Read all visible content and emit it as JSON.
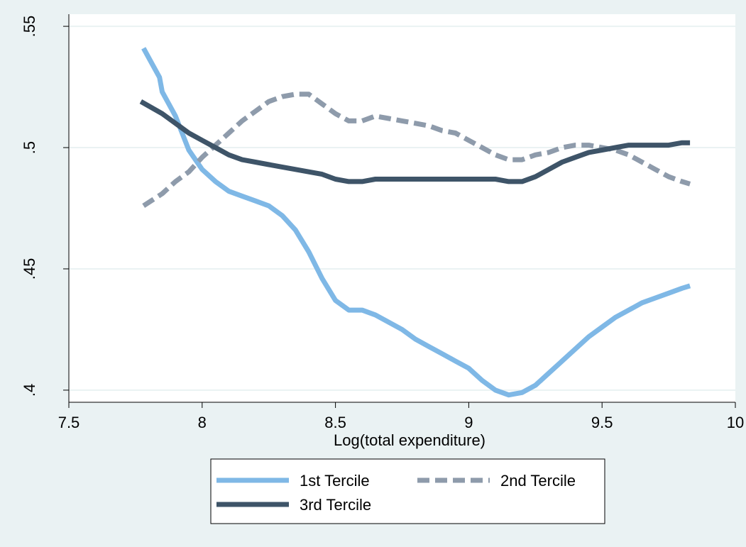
{
  "colors": {
    "background": "#eaf2f3",
    "plot_background": "#ffffff",
    "grid": "#eaf2f3",
    "axis": "#000000",
    "tercile1": "#7fb8e6",
    "tercile2": "#8e9bab",
    "tercile3": "#3e5468"
  },
  "chart_data": {
    "type": "line",
    "title": "",
    "xlabel": "Log(total expenditure)",
    "ylabel": "",
    "xlim": [
      7.5,
      10
    ],
    "ylim": [
      0.395,
      0.555
    ],
    "x_ticks": [
      7.5,
      8,
      8.5,
      9,
      9.5,
      10
    ],
    "x_tick_labels": [
      "7.5",
      "8",
      "8.5",
      "9",
      "9.5",
      "10"
    ],
    "y_ticks": [
      0.4,
      0.45,
      0.5,
      0.55
    ],
    "y_tick_labels": [
      ".4",
      ".45",
      ".5",
      ".55"
    ],
    "grid": true,
    "legend_position": "bottom",
    "series": [
      {
        "name": "1st Tercile",
        "color": "#7fb8e6",
        "style": "solid",
        "x": [
          7.78,
          7.81,
          7.84,
          7.85,
          7.9,
          7.95,
          8.0,
          8.05,
          8.1,
          8.15,
          8.2,
          8.25,
          8.3,
          8.35,
          8.4,
          8.45,
          8.5,
          8.55,
          8.6,
          8.65,
          8.7,
          8.75,
          8.8,
          8.85,
          8.9,
          8.95,
          9.0,
          9.05,
          9.1,
          9.15,
          9.2,
          9.25,
          9.3,
          9.35,
          9.4,
          9.45,
          9.5,
          9.55,
          9.6,
          9.65,
          9.7,
          9.75,
          9.8,
          9.83
        ],
        "y": [
          0.541,
          0.535,
          0.529,
          0.523,
          0.513,
          0.499,
          0.491,
          0.486,
          0.482,
          0.48,
          0.478,
          0.476,
          0.472,
          0.466,
          0.457,
          0.446,
          0.437,
          0.433,
          0.433,
          0.431,
          0.428,
          0.425,
          0.421,
          0.418,
          0.415,
          0.412,
          0.409,
          0.404,
          0.4,
          0.398,
          0.399,
          0.402,
          0.407,
          0.412,
          0.417,
          0.422,
          0.426,
          0.43,
          0.433,
          0.436,
          0.438,
          0.44,
          0.442,
          0.443
        ]
      },
      {
        "name": "2nd Tercile",
        "color": "#8e9bab",
        "style": "dashed",
        "x": [
          7.78,
          7.85,
          7.9,
          7.95,
          8.0,
          8.05,
          8.1,
          8.15,
          8.2,
          8.25,
          8.3,
          8.35,
          8.4,
          8.45,
          8.5,
          8.55,
          8.6,
          8.65,
          8.7,
          8.75,
          8.8,
          8.85,
          8.9,
          8.95,
          9.0,
          9.05,
          9.1,
          9.15,
          9.2,
          9.25,
          9.3,
          9.35,
          9.4,
          9.45,
          9.5,
          9.55,
          9.6,
          9.65,
          9.7,
          9.75,
          9.8,
          9.83
        ],
        "y": [
          0.476,
          0.481,
          0.486,
          0.49,
          0.496,
          0.501,
          0.506,
          0.511,
          0.515,
          0.519,
          0.521,
          0.522,
          0.522,
          0.518,
          0.514,
          0.511,
          0.511,
          0.513,
          0.512,
          0.511,
          0.51,
          0.509,
          0.507,
          0.506,
          0.503,
          0.5,
          0.497,
          0.495,
          0.495,
          0.497,
          0.498,
          0.5,
          0.501,
          0.501,
          0.5,
          0.499,
          0.497,
          0.494,
          0.491,
          0.488,
          0.486,
          0.485
        ]
      },
      {
        "name": "3rd Tercile",
        "color": "#3e5468",
        "style": "solid",
        "x": [
          7.77,
          7.85,
          7.9,
          7.95,
          8.0,
          8.05,
          8.1,
          8.15,
          8.2,
          8.25,
          8.3,
          8.35,
          8.4,
          8.45,
          8.5,
          8.55,
          8.6,
          8.65,
          8.7,
          8.75,
          8.8,
          8.85,
          8.9,
          8.95,
          9.0,
          9.05,
          9.1,
          9.15,
          9.2,
          9.25,
          9.3,
          9.35,
          9.4,
          9.45,
          9.5,
          9.55,
          9.6,
          9.65,
          9.7,
          9.75,
          9.8,
          9.83
        ],
        "y": [
          0.519,
          0.514,
          0.51,
          0.506,
          0.503,
          0.5,
          0.497,
          0.495,
          0.494,
          0.493,
          0.492,
          0.491,
          0.49,
          0.489,
          0.487,
          0.486,
          0.486,
          0.487,
          0.487,
          0.487,
          0.487,
          0.487,
          0.487,
          0.487,
          0.487,
          0.487,
          0.487,
          0.486,
          0.486,
          0.488,
          0.491,
          0.494,
          0.496,
          0.498,
          0.499,
          0.5,
          0.501,
          0.501,
          0.501,
          0.501,
          0.502,
          0.502
        ]
      }
    ]
  }
}
